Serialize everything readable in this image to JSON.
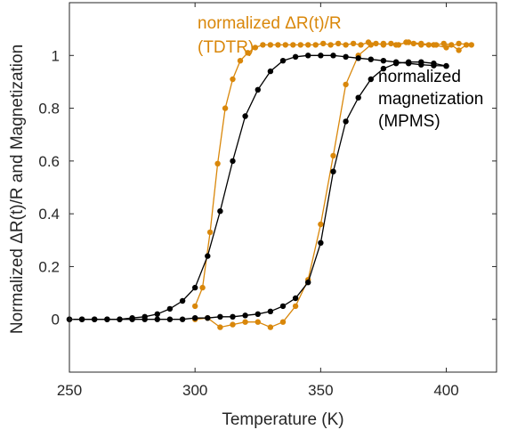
{
  "chart_data": {
    "type": "line",
    "xlabel": "Temperature (K)",
    "ylabel": "Normalized ΔR(t)/R and Magnetization",
    "xlim": [
      250,
      420
    ],
    "ylim": [
      -0.2,
      1.2
    ],
    "xticks": [
      "250",
      "300",
      "350",
      "400"
    ],
    "yticks": [
      "0",
      "0.2",
      "0.4",
      "0.6",
      "0.8",
      "1"
    ],
    "grid": false,
    "box": true,
    "colors": {
      "tdtr": "#D9870A",
      "mpms": "#000000"
    },
    "annotations": [
      {
        "series": "tdtr",
        "lines": [
          "normalized ΔR(t)/R",
          "(TDTR)"
        ]
      },
      {
        "series": "mpms",
        "lines": [
          "normalized",
          "magnetization",
          "(MPMS)"
        ]
      }
    ],
    "series": [
      {
        "id": "tdtr",
        "name": "normalized ΔR(t)/R (TDTR)",
        "color": "#D9870A",
        "branches": [
          {
            "x": [
              300,
              303,
              306,
              309,
              312,
              315,
              318,
              321,
              324,
              327,
              330,
              333,
              336,
              339,
              342,
              345,
              348,
              351,
              354,
              357,
              360,
              363,
              366,
              369,
              372,
              375,
              378,
              381,
              384,
              387,
              390,
              393,
              396,
              399,
              402,
              405,
              408
            ],
            "y": [
              0.05,
              0.12,
              0.33,
              0.59,
              0.8,
              0.91,
              0.98,
              1.01,
              1.03,
              1.04,
              1.04,
              1.04,
              1.04,
              1.04,
              1.04,
              1.04,
              1.04,
              1.045,
              1.04,
              1.045,
              1.04,
              1.045,
              1.04,
              1.05,
              1.045,
              1.04,
              1.045,
              1.04,
              1.05,
              1.045,
              1.04,
              1.04,
              1.04,
              1.045,
              1.04,
              1.02,
              1.04
            ]
          },
          {
            "x": [
              300,
              305,
              310,
              315,
              320,
              325,
              330,
              335,
              340,
              345,
              350,
              355,
              360,
              365,
              370,
              375,
              380,
              385,
              390,
              395,
              400,
              405,
              410
            ],
            "y": [
              0.0,
              0.005,
              -0.03,
              -0.02,
              -0.01,
              -0.01,
              -0.03,
              -0.01,
              0.05,
              0.15,
              0.36,
              0.62,
              0.89,
              1.0,
              1.04,
              1.045,
              1.04,
              1.05,
              1.045,
              1.04,
              1.03,
              1.045,
              1.04
            ]
          }
        ]
      },
      {
        "id": "mpms",
        "name": "normalized magnetization (MPMS)",
        "color": "#000000",
        "branches": [
          {
            "x": [
              250,
              255,
              260,
              265,
              270,
              275,
              280,
              285,
              290,
              295,
              300,
              305,
              310,
              315,
              320,
              325,
              330,
              335,
              340,
              345,
              350,
              355,
              360,
              365,
              370,
              375,
              380,
              385,
              390,
              395,
              400
            ],
            "y": [
              0.0,
              0.0,
              0.0,
              0.0,
              0.0,
              0.005,
              0.01,
              0.02,
              0.04,
              0.07,
              0.12,
              0.24,
              0.41,
              0.6,
              0.77,
              0.87,
              0.94,
              0.98,
              0.995,
              1.0,
              1.0,
              1.0,
              0.995,
              0.99,
              0.985,
              0.98,
              0.975,
              0.97,
              0.965,
              0.962,
              0.96
            ]
          },
          {
            "x": [
              250,
              255,
              260,
              265,
              270,
              275,
              280,
              285,
              290,
              295,
              300,
              305,
              310,
              315,
              320,
              325,
              330,
              335,
              340,
              345,
              350,
              355,
              360,
              365,
              370,
              375,
              380,
              385,
              390,
              395,
              400
            ],
            "y": [
              0.0,
              0.0,
              0.0,
              0.0,
              0.0,
              0.0,
              0.0,
              0.0,
              0.0,
              0.0,
              0.005,
              0.005,
              0.01,
              0.01,
              0.015,
              0.02,
              0.03,
              0.05,
              0.08,
              0.14,
              0.29,
              0.56,
              0.75,
              0.84,
              0.91,
              0.95,
              0.97,
              0.975,
              0.975,
              0.97,
              0.96
            ]
          }
        ]
      }
    ]
  }
}
